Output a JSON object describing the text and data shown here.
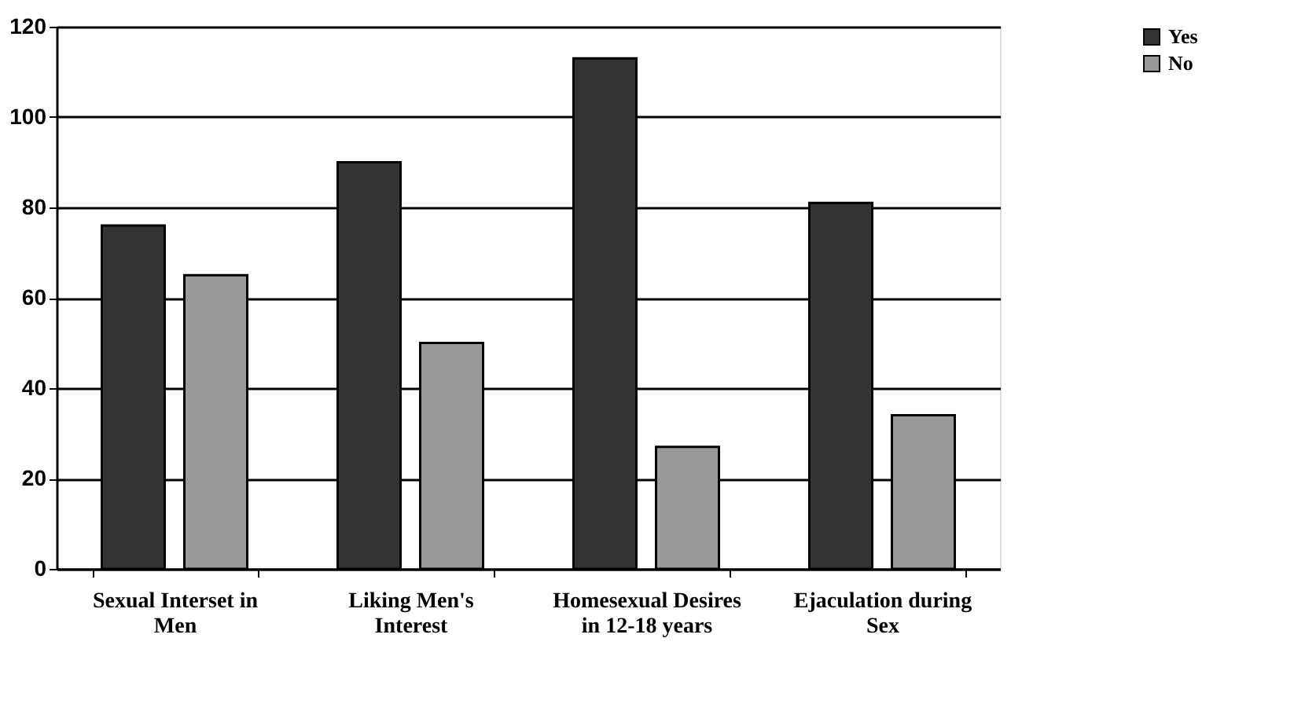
{
  "chart_data": {
    "type": "bar",
    "categories": [
      "Sexual Interset in Men",
      "Liking Men's Interest",
      "Homesexual Desires in 12-18 years",
      "Ejaculation during Sex"
    ],
    "series": [
      {
        "name": "Yes",
        "color": "#333333",
        "values": [
          76,
          90,
          113,
          81
        ]
      },
      {
        "name": "No",
        "color": "#999999",
        "values": [
          65,
          50,
          27,
          34
        ]
      }
    ],
    "ylim": [
      0,
      120
    ],
    "yticks": [
      0,
      20,
      40,
      60,
      80,
      100,
      120
    ],
    "grid": "y",
    "legend": "right"
  }
}
